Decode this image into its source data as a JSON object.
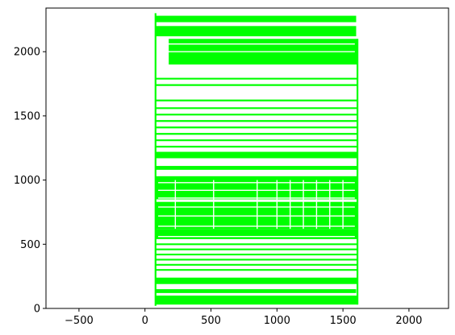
{
  "chart_data": {
    "type": "scatter",
    "title": "",
    "xlabel": "",
    "ylabel": "",
    "xlim": [
      -750,
      2300
    ],
    "ylim": [
      0,
      2340
    ],
    "xticks": [
      -500,
      0,
      500,
      1000,
      1500,
      2000
    ],
    "yticks": [
      0,
      500,
      1000,
      1500,
      2000
    ],
    "xtick_labels": [
      "−500",
      "0",
      "500",
      "1000",
      "1500",
      "2000"
    ],
    "ytick_labels": [
      "0",
      "500",
      "1000",
      "1500",
      "2000"
    ],
    "grid": false,
    "legend": "none",
    "point_color": "#00ff00",
    "series": [
      {
        "description_marks": [
          {
            "kind": "block",
            "x0": 80,
            "x1": 1610,
            "y0": 30,
            "y1": 100
          },
          {
            "kind": "block",
            "x0": 80,
            "x1": 1600,
            "y0": 120,
            "y1": 150
          },
          {
            "kind": "block",
            "x0": 80,
            "x1": 1610,
            "y0": 190,
            "y1": 240
          },
          {
            "kind": "block",
            "x0": 80,
            "x1": 1610,
            "y0": 540,
            "y1": 620
          },
          {
            "kind": "block",
            "x0": 80,
            "x1": 1610,
            "y0": 620,
            "y1": 830
          },
          {
            "kind": "block",
            "x0": 80,
            "x1": 1610,
            "y0": 850,
            "y1": 1030
          },
          {
            "kind": "block",
            "x0": 80,
            "x1": 1610,
            "y0": 1080,
            "y1": 1110
          },
          {
            "kind": "block",
            "x0": 80,
            "x1": 1610,
            "y0": 1170,
            "y1": 1220
          },
          {
            "kind": "block",
            "x0": 180,
            "x1": 1610,
            "y0": 1900,
            "y1": 2100
          },
          {
            "kind": "block",
            "x0": 80,
            "x1": 1600,
            "y0": 2120,
            "y1": 2200
          },
          {
            "kind": "block",
            "x0": 80,
            "x1": 1600,
            "y0": 2230,
            "y1": 2280
          },
          {
            "kind": "rule",
            "x0": 80,
            "x1": 1610,
            "y": 300
          },
          {
            "kind": "rule",
            "x0": 80,
            "x1": 1610,
            "y": 340
          },
          {
            "kind": "rule",
            "x0": 80,
            "x1": 1610,
            "y": 380
          },
          {
            "kind": "rule",
            "x0": 80,
            "x1": 1610,
            "y": 420
          },
          {
            "kind": "rule",
            "x0": 80,
            "x1": 1610,
            "y": 460
          },
          {
            "kind": "rule",
            "x0": 80,
            "x1": 1610,
            "y": 500
          },
          {
            "kind": "rule",
            "x0": 80,
            "x1": 1610,
            "y": 1260
          },
          {
            "kind": "rule",
            "x0": 80,
            "x1": 1610,
            "y": 1310
          },
          {
            "kind": "rule",
            "x0": 80,
            "x1": 1610,
            "y": 1360
          },
          {
            "kind": "rule",
            "x0": 80,
            "x1": 1610,
            "y": 1410
          },
          {
            "kind": "rule",
            "x0": 80,
            "x1": 1610,
            "y": 1460
          },
          {
            "kind": "rule",
            "x0": 80,
            "x1": 1610,
            "y": 1510
          },
          {
            "kind": "rule",
            "x0": 80,
            "x1": 1610,
            "y": 1560
          },
          {
            "kind": "rule",
            "x0": 80,
            "x1": 1610,
            "y": 1620
          },
          {
            "kind": "rule",
            "x0": 80,
            "x1": 1610,
            "y": 1740
          },
          {
            "kind": "rule",
            "x0": 80,
            "x1": 1610,
            "y": 1790
          }
        ]
      }
    ]
  }
}
